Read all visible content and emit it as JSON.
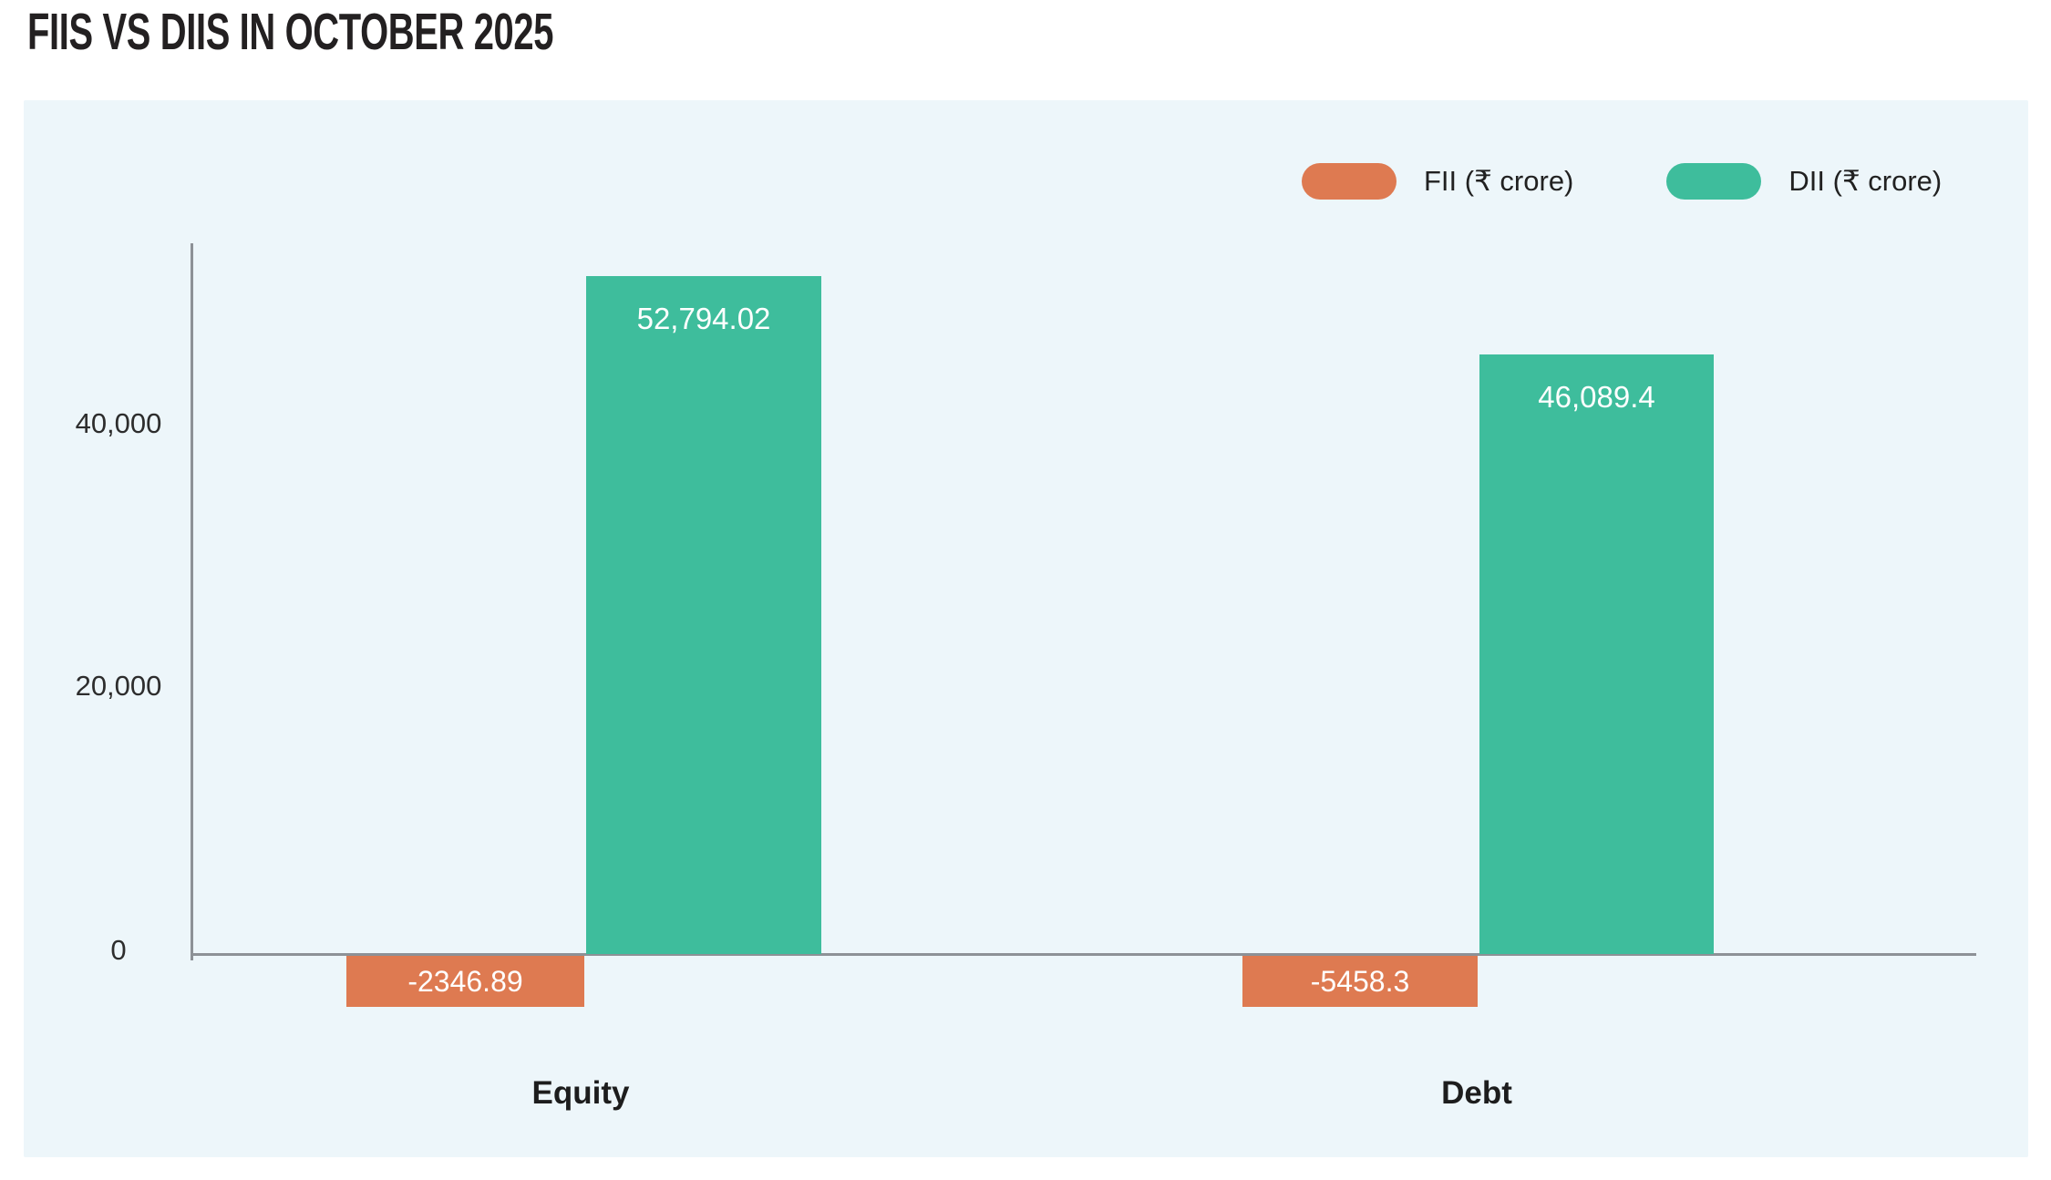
{
  "page": {
    "title": "FIIS VS DIIS IN OCTOBER 2025"
  },
  "legend": {
    "items": [
      {
        "label": "FII (₹ crore)",
        "color": "#de7a51"
      },
      {
        "label": "DII (₹ crore)",
        "color": "#3ebd9c"
      }
    ]
  },
  "colors": {
    "fii": "#de7a51",
    "dii": "#3ebd9c",
    "panel_background": "#edf6fa",
    "axis": "#8d9196",
    "bar_value_text": "#ffffff"
  },
  "chart_data": {
    "type": "bar",
    "title": "FIIS VS DIIS IN OCTOBER 2025",
    "categories": [
      "Equity",
      "Debt"
    ],
    "series": [
      {
        "name": "FII (₹ crore)",
        "color": "#de7a51",
        "values": [
          -2346.89,
          -5458.3
        ],
        "value_labels": [
          "-2346.89",
          "-5458.3"
        ]
      },
      {
        "name": "DII (₹ crore)",
        "color": "#3ebd9c",
        "values": [
          52794.02,
          46089.4
        ],
        "value_labels": [
          "52,794.02",
          "46,089.4"
        ]
      }
    ],
    "y_ticks": [
      "0",
      "20,000",
      "40,000"
    ],
    "ylim": [
      -8000,
      56000
    ],
    "grid": false,
    "legend_position": "top-right",
    "unit": "₹ crore"
  }
}
